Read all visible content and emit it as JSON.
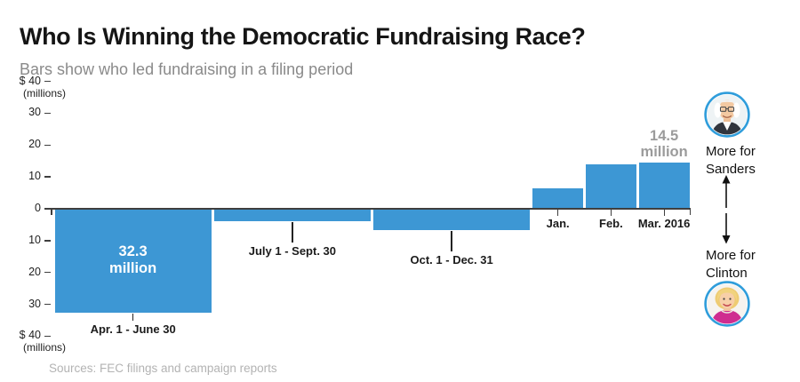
{
  "header": {
    "title": "Who Is Winning the Democratic Fundraising Race?",
    "subtitle": "Bars show who led fundraising in a filing period"
  },
  "chart_data": {
    "type": "bar",
    "title": "Who Is Winning the Democratic Fundraising Race?",
    "subtitle": "Bars show who led fundraising in a filing period",
    "unit": "millions of dollars",
    "ylim": [
      -40,
      40
    ],
    "grid": false,
    "zero_axis": true,
    "direction_labels": {
      "positive": "More for Sanders",
      "negative": "More for Clinton"
    },
    "yticks": [
      {
        "value": 40,
        "label": "$ 40",
        "note": "(millions)"
      },
      {
        "value": 30,
        "label": "30"
      },
      {
        "value": 20,
        "label": "20"
      },
      {
        "value": 10,
        "label": "10"
      },
      {
        "value": 0,
        "label": "0"
      },
      {
        "value": -10,
        "label": "10"
      },
      {
        "value": -20,
        "label": "20"
      },
      {
        "value": -30,
        "label": "30"
      },
      {
        "value": -40,
        "label": "$ 40",
        "note": "(millions)"
      }
    ],
    "categories": [
      "Apr. 1 - June 30",
      "July 1 - Sept. 30",
      "Oct. 1 - Dec. 31",
      "Jan.",
      "Feb.",
      "Mar. 2016"
    ],
    "bars": [
      {
        "period": "Apr. 1 - June 30",
        "value": -32.3,
        "leader": "Clinton",
        "start_month": 0,
        "months": 3,
        "label_placement": "callout",
        "value_label": "32.3\nmillion",
        "value_label_placement": "inside"
      },
      {
        "period": "July 1 - Sept. 30",
        "value": -3.5,
        "leader": "Clinton",
        "start_month": 3,
        "months": 3,
        "label_placement": "callout"
      },
      {
        "period": "Oct. 1 - Dec. 31",
        "value": -6.3,
        "leader": "Clinton",
        "start_month": 6,
        "months": 3,
        "label_placement": "callout"
      },
      {
        "period": "Jan.",
        "value": 6.4,
        "leader": "Sanders",
        "start_month": 9,
        "months": 1,
        "label_placement": "axis"
      },
      {
        "period": "Feb.",
        "value": 14.0,
        "leader": "Sanders",
        "start_month": 10,
        "months": 1,
        "label_placement": "axis"
      },
      {
        "period": "Mar. 2016",
        "value": 14.5,
        "leader": "Sanders",
        "start_month": 11,
        "months": 1,
        "label_placement": "axis",
        "value_label": "14.5\nmillion",
        "value_label_placement": "above"
      }
    ]
  },
  "legend": {
    "sanders_avatar": "bernie-sanders-portrait",
    "sanders_label": "More for\nSanders",
    "clinton_label": "More for\nClinton",
    "clinton_avatar": "hillary-clinton-portrait"
  },
  "footer": {
    "sources": "Sources: FEC filings and campaign reports"
  },
  "colors": {
    "bar": "#3D97D4",
    "axis": "#3F3F3F",
    "avatar_ring": "#2F9DDB",
    "value_label_inside": "#FFFFFF",
    "value_label_above": "#9B9B9B",
    "title": "#151515",
    "subtitle": "#8A8A8A",
    "sources": "#B3B3B3"
  }
}
